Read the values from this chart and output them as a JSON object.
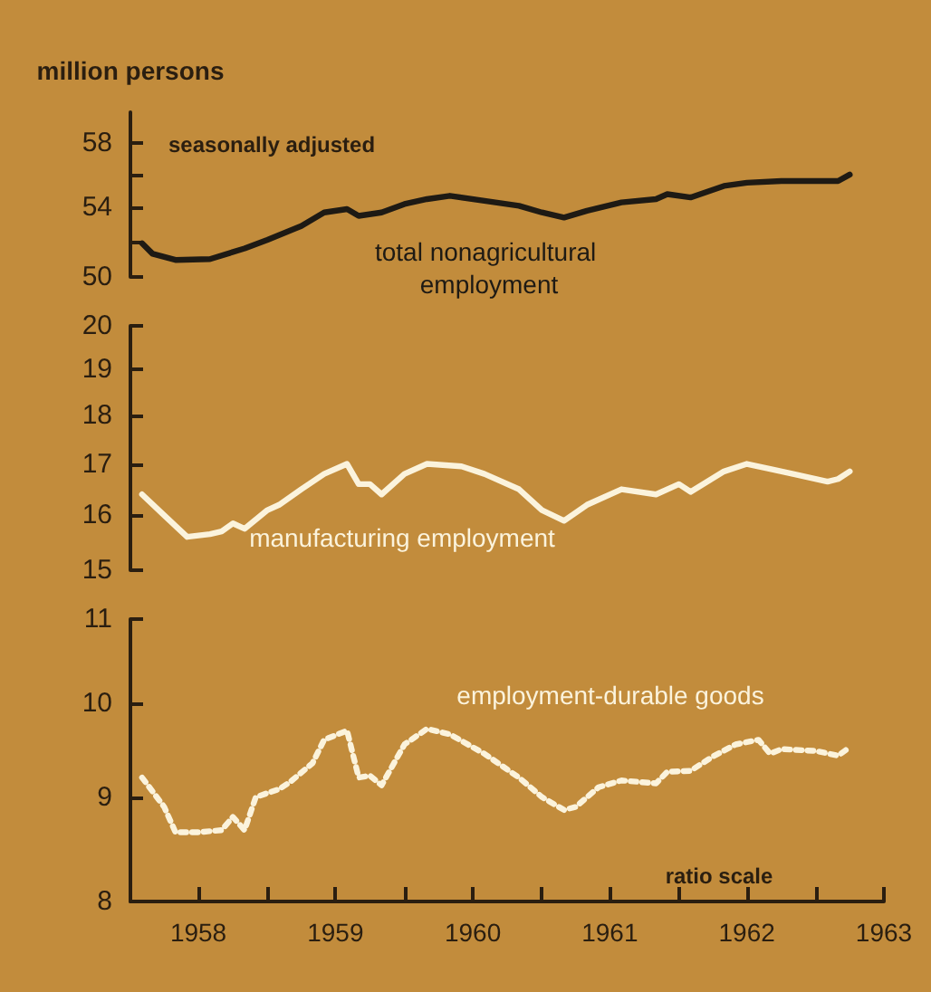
{
  "chart_data": [
    {
      "type": "line",
      "ylabel": "million persons",
      "log": "y",
      "ylim": [
        50,
        60
      ],
      "yticks": [
        50,
        {
          "value": 52,
          "label": null
        },
        54,
        {
          "value": 56,
          "label": null
        },
        58
      ],
      "xlim": [
        "1958-01",
        "1963-07"
      ],
      "tick_labels": "y",
      "grid": false,
      "legend": false,
      "marker": "none",
      "annotations": [
        "seasonally adjusted"
      ],
      "series": [
        {
          "name": "total nonagricultural employment",
          "color": "#1e1a14",
          "line_style": "solid",
          "x": [
            "1958-02",
            "1958-03",
            "1958-05",
            "1958-08",
            "1958-11",
            "1959-01",
            "1959-04",
            "1959-06",
            "1959-08",
            "1959-09",
            "1959-11",
            "1960-01",
            "1960-03",
            "1960-05",
            "1960-08",
            "1960-11",
            "1961-01",
            "1961-03",
            "1961-05",
            "1961-08",
            "1961-11",
            "1961-12",
            "1962-02",
            "1962-05",
            "1962-07",
            "1962-10",
            "1963-03",
            "1963-04"
          ],
          "values": [
            51.9,
            51.3,
            50.95,
            51.0,
            51.6,
            52.1,
            52.9,
            53.7,
            53.9,
            53.5,
            53.7,
            54.2,
            54.5,
            54.7,
            54.4,
            54.1,
            53.7,
            53.4,
            53.8,
            54.3,
            54.5,
            54.8,
            54.6,
            55.3,
            55.5,
            55.6,
            55.6,
            56.0
          ]
        }
      ]
    },
    {
      "type": "line",
      "log": "y",
      "ylim": [
        15,
        20
      ],
      "yticks": [
        15,
        16,
        17,
        18,
        19,
        20
      ],
      "xlim": [
        "1958-01",
        "1963-07"
      ],
      "tick_labels": "y",
      "grid": false,
      "legend": false,
      "marker": "none",
      "series": [
        {
          "name": "manufacturing employment",
          "color": "#fbf3dc",
          "line_style": "solid",
          "x": [
            "1958-02",
            "1958-04",
            "1958-06",
            "1958-08",
            "1958-09",
            "1958-10",
            "1958-11",
            "1959-01",
            "1959-02",
            "1959-04",
            "1959-06",
            "1959-08",
            "1959-09",
            "1959-10",
            "1959-11",
            "1960-01",
            "1960-03",
            "1960-06",
            "1960-08",
            "1960-11",
            "1961-01",
            "1961-03",
            "1961-05",
            "1961-08",
            "1961-11",
            "1962-01",
            "1962-02",
            "1962-05",
            "1962-07",
            "1962-09",
            "1962-11",
            "1963-02",
            "1963-03",
            "1963-04"
          ],
          "values": [
            16.4,
            16.0,
            15.6,
            15.65,
            15.7,
            15.85,
            15.75,
            16.1,
            16.2,
            16.5,
            16.8,
            17.0,
            16.6,
            16.6,
            16.4,
            16.8,
            17.0,
            16.95,
            16.8,
            16.5,
            16.1,
            15.9,
            16.2,
            16.5,
            16.4,
            16.6,
            16.45,
            16.85,
            17.0,
            16.9,
            16.8,
            16.65,
            16.7,
            16.85
          ]
        }
      ]
    },
    {
      "type": "line",
      "log": "y",
      "ylim": [
        8,
        11
      ],
      "yticks": [
        8,
        9,
        10,
        11
      ],
      "xlim": [
        "1958-01",
        "1963-07"
      ],
      "xticks": [
        {
          "value": "1958-07",
          "label": "1958"
        },
        {
          "value": "1959-01",
          "label": null
        },
        {
          "value": "1959-07",
          "label": "1959"
        },
        {
          "value": "1960-01",
          "label": null
        },
        {
          "value": "1960-07",
          "label": "1960"
        },
        {
          "value": "1961-01",
          "label": null
        },
        {
          "value": "1961-07",
          "label": "1961"
        },
        {
          "value": "1962-01",
          "label": null
        },
        {
          "value": "1962-07",
          "label": "1962"
        },
        {
          "value": "1963-01",
          "label": null
        },
        {
          "value": "1963-07",
          "label": "1963"
        }
      ],
      "grid": false,
      "legend": false,
      "marker": "none",
      "annotations": [
        "ratio scale"
      ],
      "series": [
        {
          "name": "employment-durable goods",
          "color": "#fbf3dc",
          "line_style": "dotted",
          "x": [
            "1958-02",
            "1958-04",
            "1958-05",
            "1958-07",
            "1958-09",
            "1958-10",
            "1958-11",
            "1958-12",
            "1959-02",
            "1959-03",
            "1959-05",
            "1959-06",
            "1959-08",
            "1959-09",
            "1959-10",
            "1959-11",
            "1960-01",
            "1960-03",
            "1960-05",
            "1960-08",
            "1960-11",
            "1961-01",
            "1961-03",
            "1961-04",
            "1961-06",
            "1961-08",
            "1961-11",
            "1961-12",
            "1962-02",
            "1962-04",
            "1962-06",
            "1962-08",
            "1962-09",
            "1962-10",
            "1963-01",
            "1963-03",
            "1963-04"
          ],
          "values": [
            9.2,
            8.9,
            8.65,
            8.65,
            8.67,
            8.8,
            8.67,
            9.0,
            9.08,
            9.15,
            9.35,
            9.6,
            9.7,
            9.2,
            9.22,
            9.12,
            9.55,
            9.72,
            9.66,
            9.45,
            9.2,
            9.0,
            8.87,
            8.9,
            9.1,
            9.17,
            9.14,
            9.26,
            9.27,
            9.42,
            9.55,
            9.6,
            9.45,
            9.5,
            9.48,
            9.43,
            9.52
          ]
        }
      ]
    }
  ]
}
